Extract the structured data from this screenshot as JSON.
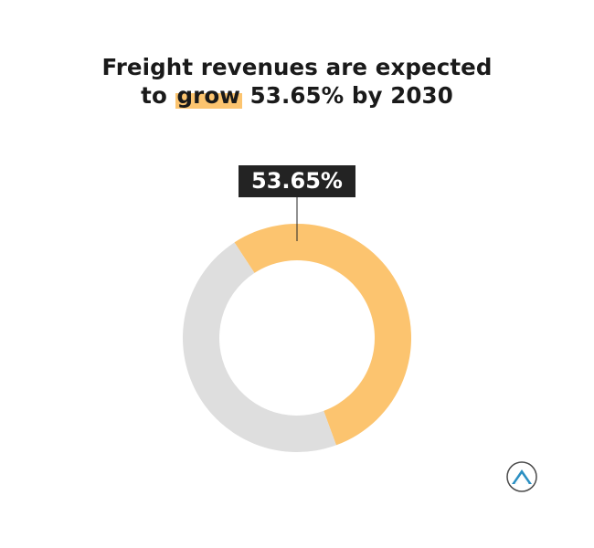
{
  "title": {
    "line1": "Freight revenues are expected",
    "line2_pre": "to ",
    "line2_highlight": "grow",
    "line2_post": " 53.65% by 2030"
  },
  "chart_data": {
    "type": "pie",
    "donut": true,
    "slices": [
      {
        "label": "53.65%",
        "value": 53.65,
        "color": "#fcc46f"
      },
      {
        "label": "",
        "value": 46.35,
        "color": "#dedede"
      }
    ],
    "data_label": "53.65%"
  },
  "colors": {
    "accent": "#fcc46f",
    "remainder": "#dedede",
    "label_bg": "#232323"
  },
  "logo": {
    "icon": "mountain-logo-icon"
  }
}
